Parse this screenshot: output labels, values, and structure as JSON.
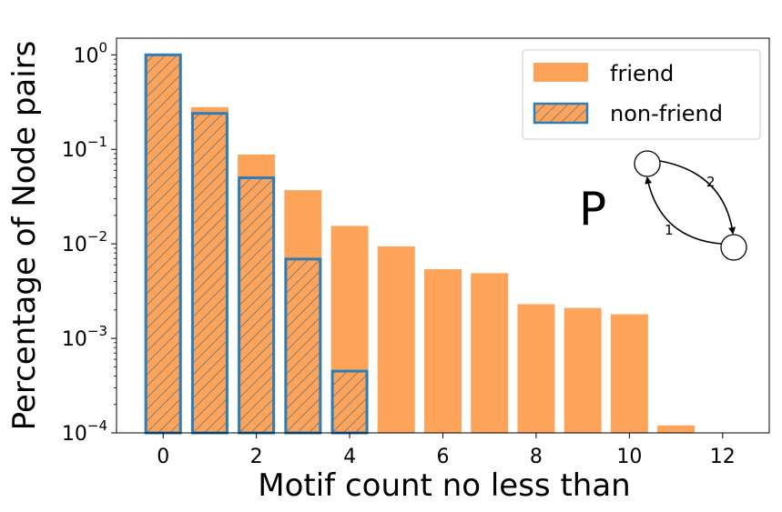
{
  "chart_data": {
    "type": "bar",
    "yscale": "log",
    "xlabel": "Motif count no less than",
    "ylabel": "Percentage of Node pairs",
    "xticks": [
      "0",
      "2",
      "4",
      "6",
      "8",
      "10",
      "12"
    ],
    "ytick_bases": [
      "10",
      "10",
      "10",
      "10",
      "10"
    ],
    "ytick_exps": [
      "0",
      "−1",
      "−2",
      "−3",
      "−4"
    ],
    "ylim": [
      0.0001,
      1.5
    ],
    "xlim": [
      -1,
      13
    ],
    "series": [
      {
        "name": "friend",
        "style": "solid",
        "color": "#FDA45A",
        "x": [
          0,
          1,
          2,
          3,
          4,
          5,
          6,
          7,
          8,
          9,
          10,
          11
        ],
        "values": [
          1.0,
          0.28,
          0.088,
          0.037,
          0.0155,
          0.0094,
          0.0054,
          0.0049,
          0.0023,
          0.0021,
          0.0018,
          0.00012
        ]
      },
      {
        "name": "non-friend",
        "style": "hatched",
        "color": "#2E7DB6",
        "x": [
          0,
          1,
          2,
          3,
          4
        ],
        "values": [
          1.0,
          0.24,
          0.05,
          0.0069,
          0.00045
        ]
      }
    ],
    "legend_position": "top-right",
    "grid": false
  },
  "motif_diagram": {
    "letter": "P",
    "edge_labels": [
      "2",
      "1"
    ]
  }
}
